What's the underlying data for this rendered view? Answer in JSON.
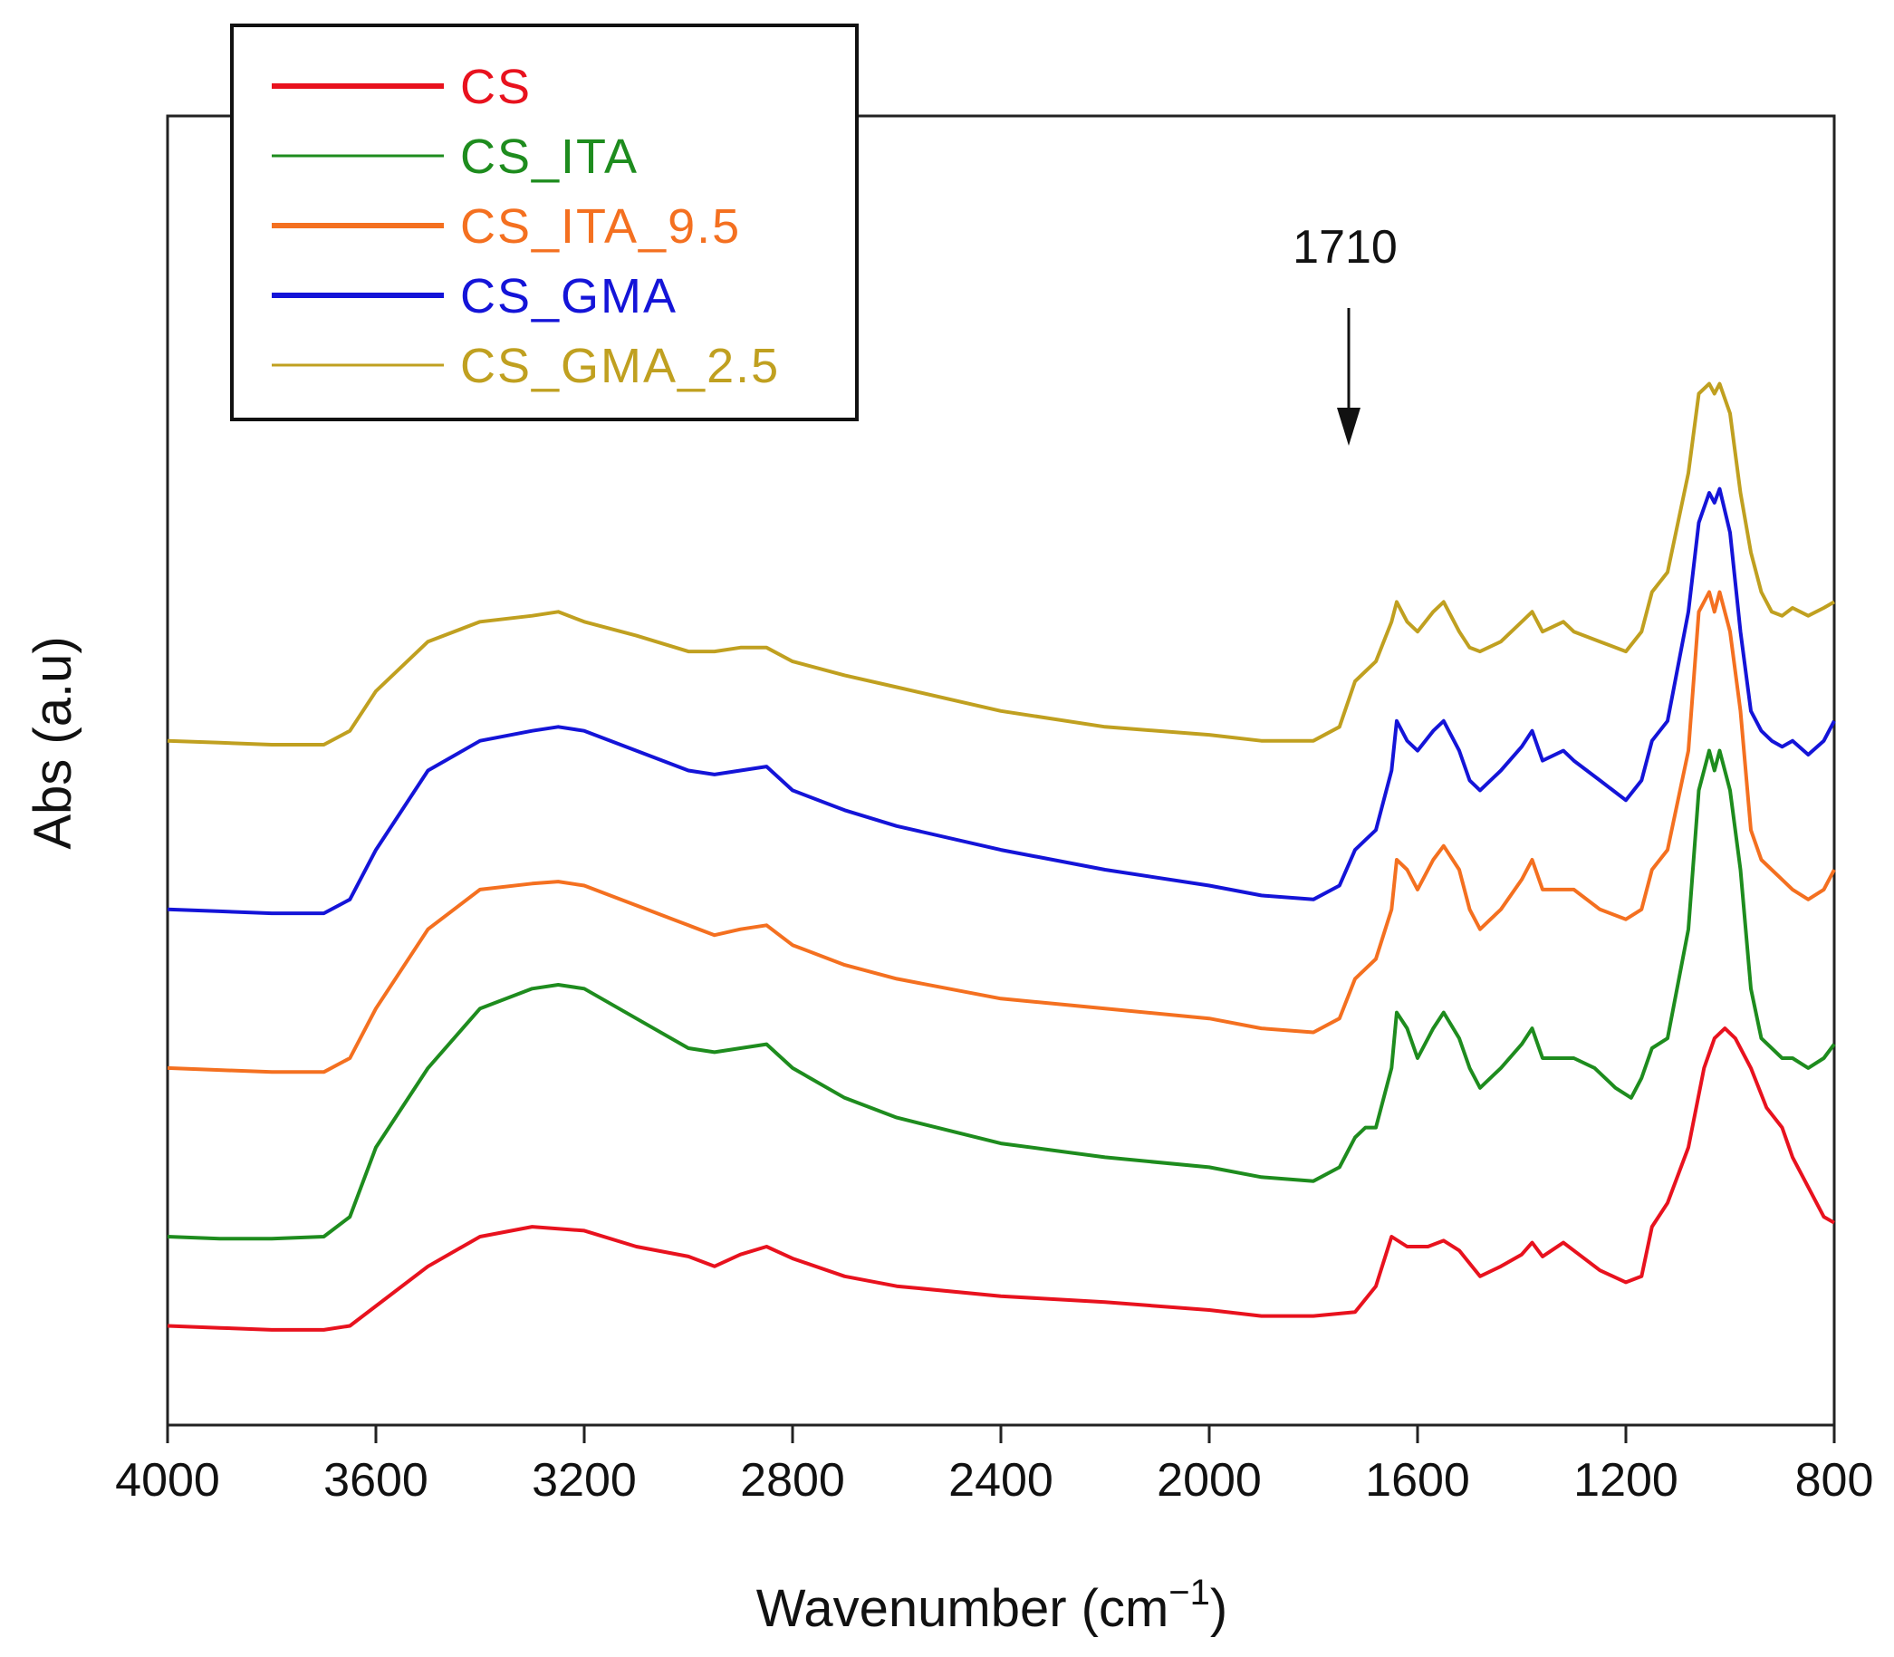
{
  "chart_data": {
    "type": "line",
    "title": "",
    "xlabel": "Wavenumber (cm",
    "xlabel_superscript": "−1",
    "xlabel_close": ")",
    "ylabel": "Abs (a.u)",
    "xlim": [
      4000,
      800
    ],
    "x_reversed": true,
    "ylim": [
      0,
      6.6
    ],
    "y_ticks_shown": false,
    "x_ticks": [
      4000,
      3600,
      3200,
      2800,
      2400,
      2000,
      1600,
      1200,
      800
    ],
    "x_tick_labels": [
      "4000",
      "3600",
      "3200",
      "2800",
      "2400",
      "2000",
      "1600",
      "1200",
      "800"
    ],
    "grid": false,
    "legend_position": "top-left",
    "annotation": {
      "text": "1710",
      "x": 1710,
      "arrow": "down"
    },
    "series": [
      {
        "name": "CS",
        "color": "#e8121e",
        "offset": 0.0,
        "points": [
          [
            4000,
            0.5
          ],
          [
            3900,
            0.49
          ],
          [
            3800,
            0.48
          ],
          [
            3700,
            0.48
          ],
          [
            3650,
            0.5
          ],
          [
            3600,
            0.6
          ],
          [
            3500,
            0.8
          ],
          [
            3400,
            0.95
          ],
          [
            3300,
            1.0
          ],
          [
            3200,
            0.98
          ],
          [
            3100,
            0.9
          ],
          [
            3000,
            0.85
          ],
          [
            2950,
            0.8
          ],
          [
            2900,
            0.86
          ],
          [
            2850,
            0.9
          ],
          [
            2800,
            0.84
          ],
          [
            2700,
            0.75
          ],
          [
            2600,
            0.7
          ],
          [
            2400,
            0.65
          ],
          [
            2200,
            0.62
          ],
          [
            2000,
            0.58
          ],
          [
            1900,
            0.55
          ],
          [
            1800,
            0.55
          ],
          [
            1720,
            0.57
          ],
          [
            1680,
            0.7
          ],
          [
            1650,
            0.95
          ],
          [
            1620,
            0.9
          ],
          [
            1580,
            0.9
          ],
          [
            1550,
            0.93
          ],
          [
            1520,
            0.88
          ],
          [
            1480,
            0.75
          ],
          [
            1440,
            0.8
          ],
          [
            1400,
            0.86
          ],
          [
            1380,
            0.92
          ],
          [
            1360,
            0.85
          ],
          [
            1320,
            0.92
          ],
          [
            1300,
            0.88
          ],
          [
            1250,
            0.78
          ],
          [
            1200,
            0.72
          ],
          [
            1170,
            0.75
          ],
          [
            1150,
            1.0
          ],
          [
            1120,
            1.12
          ],
          [
            1080,
            1.4
          ],
          [
            1050,
            1.8
          ],
          [
            1030,
            1.95
          ],
          [
            1010,
            2.0
          ],
          [
            990,
            1.95
          ],
          [
            960,
            1.8
          ],
          [
            930,
            1.6
          ],
          [
            900,
            1.5
          ],
          [
            880,
            1.35
          ],
          [
            850,
            1.2
          ],
          [
            820,
            1.05
          ],
          [
            800,
            1.02
          ]
        ]
      },
      {
        "name": "CS_ITA",
        "color": "#1e8c1e",
        "offset": 0.0,
        "points": [
          [
            4000,
            0.95
          ],
          [
            3900,
            0.94
          ],
          [
            3800,
            0.94
          ],
          [
            3700,
            0.95
          ],
          [
            3650,
            1.05
          ],
          [
            3600,
            1.4
          ],
          [
            3500,
            1.8
          ],
          [
            3400,
            2.1
          ],
          [
            3300,
            2.2
          ],
          [
            3250,
            2.22
          ],
          [
            3200,
            2.2
          ],
          [
            3100,
            2.05
          ],
          [
            3000,
            1.9
          ],
          [
            2950,
            1.88
          ],
          [
            2900,
            1.9
          ],
          [
            2850,
            1.92
          ],
          [
            2800,
            1.8
          ],
          [
            2700,
            1.65
          ],
          [
            2600,
            1.55
          ],
          [
            2400,
            1.42
          ],
          [
            2200,
            1.35
          ],
          [
            2000,
            1.3
          ],
          [
            1900,
            1.25
          ],
          [
            1800,
            1.23
          ],
          [
            1750,
            1.3
          ],
          [
            1720,
            1.45
          ],
          [
            1700,
            1.5
          ],
          [
            1680,
            1.5
          ],
          [
            1650,
            1.8
          ],
          [
            1640,
            2.08
          ],
          [
            1620,
            2.0
          ],
          [
            1600,
            1.85
          ],
          [
            1570,
            2.0
          ],
          [
            1550,
            2.08
          ],
          [
            1520,
            1.95
          ],
          [
            1500,
            1.8
          ],
          [
            1480,
            1.7
          ],
          [
            1440,
            1.8
          ],
          [
            1400,
            1.92
          ],
          [
            1380,
            2.0
          ],
          [
            1360,
            1.85
          ],
          [
            1320,
            1.85
          ],
          [
            1300,
            1.85
          ],
          [
            1260,
            1.8
          ],
          [
            1220,
            1.7
          ],
          [
            1190,
            1.65
          ],
          [
            1170,
            1.75
          ],
          [
            1150,
            1.9
          ],
          [
            1120,
            1.95
          ],
          [
            1080,
            2.5
          ],
          [
            1060,
            3.2
          ],
          [
            1040,
            3.4
          ],
          [
            1030,
            3.3
          ],
          [
            1020,
            3.4
          ],
          [
            1000,
            3.2
          ],
          [
            980,
            2.8
          ],
          [
            960,
            2.2
          ],
          [
            940,
            1.95
          ],
          [
            920,
            1.9
          ],
          [
            900,
            1.85
          ],
          [
            880,
            1.85
          ],
          [
            850,
            1.8
          ],
          [
            820,
            1.85
          ],
          [
            800,
            1.92
          ]
        ]
      },
      {
        "name": "CS_ITA_9.5",
        "color": "#f47020",
        "offset": 0.0,
        "points": [
          [
            4000,
            1.8
          ],
          [
            3900,
            1.79
          ],
          [
            3800,
            1.78
          ],
          [
            3700,
            1.78
          ],
          [
            3650,
            1.85
          ],
          [
            3600,
            2.1
          ],
          [
            3500,
            2.5
          ],
          [
            3400,
            2.7
          ],
          [
            3300,
            2.73
          ],
          [
            3250,
            2.74
          ],
          [
            3200,
            2.72
          ],
          [
            3100,
            2.62
          ],
          [
            3000,
            2.52
          ],
          [
            2950,
            2.47
          ],
          [
            2900,
            2.5
          ],
          [
            2850,
            2.52
          ],
          [
            2800,
            2.42
          ],
          [
            2700,
            2.32
          ],
          [
            2600,
            2.25
          ],
          [
            2400,
            2.15
          ],
          [
            2200,
            2.1
          ],
          [
            2000,
            2.05
          ],
          [
            1900,
            2.0
          ],
          [
            1800,
            1.98
          ],
          [
            1750,
            2.05
          ],
          [
            1720,
            2.25
          ],
          [
            1700,
            2.3
          ],
          [
            1680,
            2.35
          ],
          [
            1650,
            2.6
          ],
          [
            1640,
            2.85
          ],
          [
            1620,
            2.8
          ],
          [
            1600,
            2.7
          ],
          [
            1570,
            2.85
          ],
          [
            1550,
            2.92
          ],
          [
            1520,
            2.8
          ],
          [
            1500,
            2.6
          ],
          [
            1480,
            2.5
          ],
          [
            1440,
            2.6
          ],
          [
            1400,
            2.75
          ],
          [
            1380,
            2.85
          ],
          [
            1360,
            2.7
          ],
          [
            1320,
            2.7
          ],
          [
            1300,
            2.7
          ],
          [
            1250,
            2.6
          ],
          [
            1200,
            2.55
          ],
          [
            1170,
            2.6
          ],
          [
            1150,
            2.8
          ],
          [
            1120,
            2.9
          ],
          [
            1080,
            3.4
          ],
          [
            1060,
            4.1
          ],
          [
            1040,
            4.2
          ],
          [
            1030,
            4.1
          ],
          [
            1020,
            4.2
          ],
          [
            1000,
            4.0
          ],
          [
            980,
            3.6
          ],
          [
            960,
            3.0
          ],
          [
            940,
            2.85
          ],
          [
            920,
            2.8
          ],
          [
            900,
            2.75
          ],
          [
            880,
            2.7
          ],
          [
            850,
            2.65
          ],
          [
            820,
            2.7
          ],
          [
            800,
            2.8
          ]
        ]
      },
      {
        "name": "CS_GMA",
        "color": "#1414d8",
        "offset": 0.0,
        "points": [
          [
            4000,
            2.6
          ],
          [
            3900,
            2.59
          ],
          [
            3800,
            2.58
          ],
          [
            3700,
            2.58
          ],
          [
            3650,
            2.65
          ],
          [
            3600,
            2.9
          ],
          [
            3500,
            3.3
          ],
          [
            3400,
            3.45
          ],
          [
            3300,
            3.5
          ],
          [
            3250,
            3.52
          ],
          [
            3200,
            3.5
          ],
          [
            3100,
            3.4
          ],
          [
            3000,
            3.3
          ],
          [
            2950,
            3.28
          ],
          [
            2900,
            3.3
          ],
          [
            2850,
            3.32
          ],
          [
            2800,
            3.2
          ],
          [
            2700,
            3.1
          ],
          [
            2600,
            3.02
          ],
          [
            2400,
            2.9
          ],
          [
            2200,
            2.8
          ],
          [
            2000,
            2.72
          ],
          [
            1900,
            2.67
          ],
          [
            1800,
            2.65
          ],
          [
            1750,
            2.72
          ],
          [
            1720,
            2.9
          ],
          [
            1700,
            2.95
          ],
          [
            1680,
            3.0
          ],
          [
            1650,
            3.3
          ],
          [
            1640,
            3.55
          ],
          [
            1620,
            3.45
          ],
          [
            1600,
            3.4
          ],
          [
            1570,
            3.5
          ],
          [
            1550,
            3.55
          ],
          [
            1520,
            3.4
          ],
          [
            1500,
            3.25
          ],
          [
            1480,
            3.2
          ],
          [
            1440,
            3.3
          ],
          [
            1400,
            3.42
          ],
          [
            1380,
            3.5
          ],
          [
            1360,
            3.35
          ],
          [
            1320,
            3.4
          ],
          [
            1300,
            3.35
          ],
          [
            1250,
            3.25
          ],
          [
            1200,
            3.15
          ],
          [
            1170,
            3.25
          ],
          [
            1150,
            3.45
          ],
          [
            1120,
            3.55
          ],
          [
            1080,
            4.1
          ],
          [
            1060,
            4.55
          ],
          [
            1040,
            4.7
          ],
          [
            1030,
            4.65
          ],
          [
            1020,
            4.72
          ],
          [
            1000,
            4.5
          ],
          [
            980,
            4.0
          ],
          [
            960,
            3.6
          ],
          [
            940,
            3.5
          ],
          [
            920,
            3.45
          ],
          [
            900,
            3.42
          ],
          [
            880,
            3.45
          ],
          [
            850,
            3.38
          ],
          [
            820,
            3.45
          ],
          [
            800,
            3.55
          ]
        ]
      },
      {
        "name": "CS_GMA_2.5",
        "color": "#c0a020",
        "offset": 0.0,
        "points": [
          [
            4000,
            3.45
          ],
          [
            3900,
            3.44
          ],
          [
            3800,
            3.43
          ],
          [
            3700,
            3.43
          ],
          [
            3650,
            3.5
          ],
          [
            3600,
            3.7
          ],
          [
            3500,
            3.95
          ],
          [
            3400,
            4.05
          ],
          [
            3300,
            4.08
          ],
          [
            3250,
            4.1
          ],
          [
            3200,
            4.05
          ],
          [
            3100,
            3.98
          ],
          [
            3000,
            3.9
          ],
          [
            2950,
            3.9
          ],
          [
            2900,
            3.92
          ],
          [
            2850,
            3.92
          ],
          [
            2800,
            3.85
          ],
          [
            2700,
            3.78
          ],
          [
            2600,
            3.72
          ],
          [
            2400,
            3.6
          ],
          [
            2200,
            3.52
          ],
          [
            2000,
            3.48
          ],
          [
            1900,
            3.45
          ],
          [
            1800,
            3.45
          ],
          [
            1750,
            3.52
          ],
          [
            1720,
            3.75
          ],
          [
            1700,
            3.8
          ],
          [
            1680,
            3.85
          ],
          [
            1650,
            4.05
          ],
          [
            1640,
            4.15
          ],
          [
            1620,
            4.05
          ],
          [
            1600,
            4.0
          ],
          [
            1570,
            4.1
          ],
          [
            1550,
            4.15
          ],
          [
            1520,
            4.0
          ],
          [
            1500,
            3.92
          ],
          [
            1480,
            3.9
          ],
          [
            1440,
            3.95
          ],
          [
            1400,
            4.05
          ],
          [
            1380,
            4.1
          ],
          [
            1360,
            4.0
          ],
          [
            1320,
            4.05
          ],
          [
            1300,
            4.0
          ],
          [
            1250,
            3.95
          ],
          [
            1200,
            3.9
          ],
          [
            1170,
            4.0
          ],
          [
            1150,
            4.2
          ],
          [
            1120,
            4.3
          ],
          [
            1080,
            4.8
          ],
          [
            1060,
            5.2
          ],
          [
            1040,
            5.25
          ],
          [
            1030,
            5.2
          ],
          [
            1020,
            5.25
          ],
          [
            1000,
            5.1
          ],
          [
            980,
            4.7
          ],
          [
            960,
            4.4
          ],
          [
            940,
            4.2
          ],
          [
            920,
            4.1
          ],
          [
            900,
            4.08
          ],
          [
            880,
            4.12
          ],
          [
            850,
            4.08
          ],
          [
            820,
            4.12
          ],
          [
            800,
            4.15
          ]
        ]
      }
    ]
  }
}
